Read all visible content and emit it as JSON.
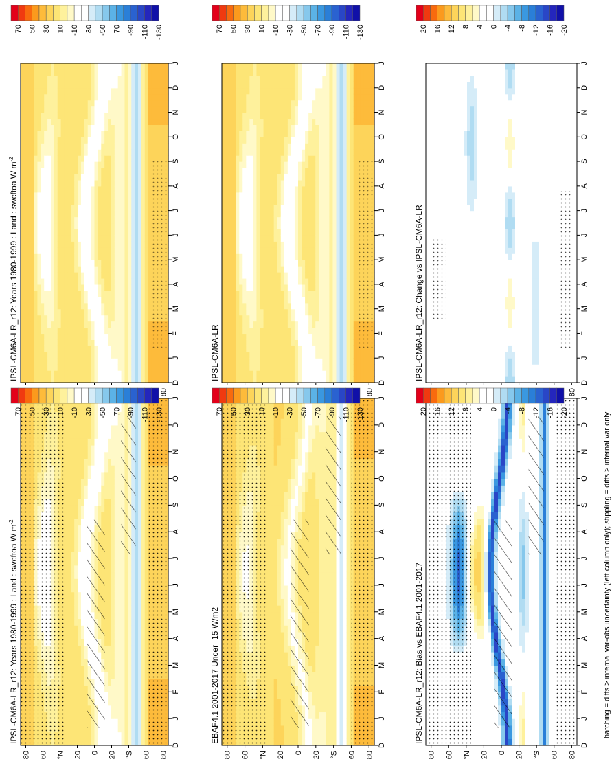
{
  "footnote": "hatching = diffs > internal var-obs uncertainty (left column only); stippling = diffs > internal var only",
  "month_labels": [
    "D",
    "J",
    "F",
    "M",
    "A",
    "M",
    "J",
    "J",
    "A",
    "S",
    "O",
    "N",
    "D",
    "J"
  ],
  "lat_labels": [
    "80",
    "60",
    "°N",
    "20",
    "0",
    "20",
    "°S",
    "60",
    "80"
  ],
  "colorbars": {
    "abs": {
      "labels": [
        "70",
        "50",
        "30",
        "10",
        "-10",
        "-30",
        "-50",
        "-70",
        "-90",
        "-110",
        "-130"
      ],
      "colors": [
        "#e3001a",
        "#f03a10",
        "#f86a0e",
        "#fb9a1d",
        "#fdbb3b",
        "#fdd45a",
        "#fde576",
        "#fef19c",
        "#fff9c8",
        "#ffffff",
        "#ffffff",
        "#d5ecf8",
        "#b0dcf2",
        "#86c8ec",
        "#5bb2e6",
        "#3a98e0",
        "#2a7fd8",
        "#2a62d0",
        "#2946c6",
        "#2426bd",
        "#1010a8"
      ]
    },
    "diff": {
      "labels": [
        "20",
        "16",
        "12",
        "8",
        "4",
        "0",
        "-4",
        "-8",
        "-12",
        "-16",
        "-20"
      ],
      "colors": [
        "#e3001a",
        "#f03a10",
        "#f86a0e",
        "#fb9a1d",
        "#fdbb3b",
        "#fdd45a",
        "#fde576",
        "#fef19c",
        "#fff9c8",
        "#ffffff",
        "#ffffff",
        "#d5ecf8",
        "#b0dcf2",
        "#86c8ec",
        "#5bb2e6",
        "#3a98e0",
        "#2a7fd8",
        "#2a62d0",
        "#2946c6",
        "#2426bd",
        "#1010a8"
      ]
    }
  },
  "panels": [
    {
      "id": "left-top",
      "title": "IPSL-CM6A-LR_r12: Years 1980-1999 : Land : swcftoa W m",
      "sup": "-2",
      "scale": "abs",
      "field": "model"
    },
    {
      "id": "left-mid",
      "title": "EBAF4.1 2001-2017 Uncer=15 W/m2",
      "sup": "",
      "scale": "abs",
      "field": "obs"
    },
    {
      "id": "left-bot",
      "title": "IPSL-CM6A-LR_r12: Bias vs EBAF4.1 2001-2017",
      "sup": "",
      "scale": "diff",
      "field": "bias"
    },
    {
      "id": "right-top",
      "title": "IPSL-CM6A-LR_r12: Years 1980-1999 : Land : swcftoa W m",
      "sup": "-2",
      "scale": "abs",
      "field": "model"
    },
    {
      "id": "right-mid",
      "title": "IPSL-CM6A-LR",
      "sup": "",
      "scale": "abs",
      "field": "model"
    },
    {
      "id": "right-bot",
      "title": "IPSL-CM6A-LR_r12: Change vs IPSL-CM6A-LR",
      "sup": "",
      "scale": "diff",
      "field": "change"
    }
  ],
  "chart_data": {
    "type": "heatmap",
    "description_x": "month (D to J)",
    "description_y": "latitude 90N to 90S",
    "months": [
      "D",
      "J",
      "F",
      "M",
      "A",
      "M",
      "J",
      "J",
      "A",
      "S",
      "O",
      "N",
      "D",
      "J"
    ]
  }
}
